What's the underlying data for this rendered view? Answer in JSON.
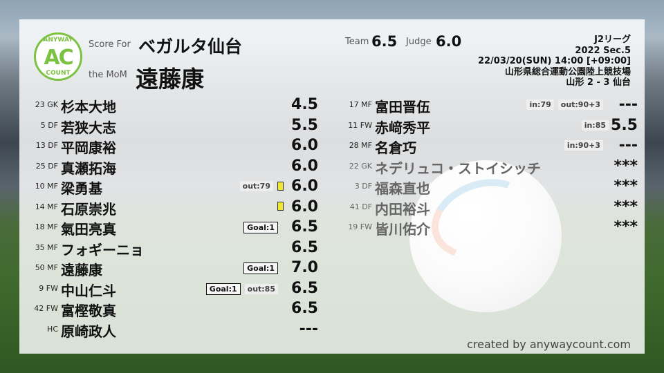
{
  "header": {
    "logo_top": "ANYWAY",
    "logo_mid": "AC",
    "logo_bottom": "COUNT",
    "score_for_label": "Score For",
    "team": "ベガルタ仙台",
    "mom_label": "the MoM",
    "mom": "遠藤康",
    "team_label": "Team",
    "team_score": "6.5",
    "judge_label": "Judge",
    "judge_score": "6.0"
  },
  "match": {
    "league": "J2リーグ",
    "section": "2022 Sec.5",
    "datetime": "22/03/20(SUN) 14:00 [+09:00]",
    "venue": "山形県総合運動公園陸上競技場",
    "result": "山形 2 - 3 仙台"
  },
  "starters": [
    {
      "num": "23 GK",
      "name": "杉本大地",
      "score": "4.5",
      "tags": []
    },
    {
      "num": "5 DF",
      "name": "若狭大志",
      "score": "5.5",
      "tags": []
    },
    {
      "num": "13 DF",
      "name": "平岡康裕",
      "score": "6.0",
      "tags": []
    },
    {
      "num": "25 DF",
      "name": "真瀬拓海",
      "score": "6.0",
      "tags": []
    },
    {
      "num": "10 MF",
      "name": "梁勇基",
      "score": "6.0",
      "tags": [
        {
          "text": "out:79",
          "type": "sub"
        },
        {
          "type": "yellow-card"
        }
      ]
    },
    {
      "num": "14 MF",
      "name": "石原崇兆",
      "score": "6.0",
      "tags": [
        {
          "type": "yellow-card"
        }
      ]
    },
    {
      "num": "18 MF",
      "name": "氣田亮真",
      "score": "6.5",
      "tags": [
        {
          "text": "Goal:1",
          "type": "goal"
        }
      ]
    },
    {
      "num": "35 MF",
      "name": "フォギーニョ",
      "score": "6.5",
      "tags": []
    },
    {
      "num": "50 MF",
      "name": "遠藤康",
      "score": "7.0",
      "tags": [
        {
          "text": "Goal:1",
          "type": "goal"
        }
      ]
    },
    {
      "num": "9 FW",
      "name": "中山仁斗",
      "score": "6.5",
      "tags": [
        {
          "text": "Goal:1",
          "type": "goal"
        },
        {
          "text": "out:85",
          "type": "sub"
        }
      ]
    },
    {
      "num": "42 FW",
      "name": "富樫敬真",
      "score": "6.5",
      "tags": []
    },
    {
      "num": "HC",
      "name": "原崎政人",
      "score": "---",
      "tags": []
    }
  ],
  "subs": [
    {
      "num": "17 MF",
      "name": "富田晋伍",
      "score": "---",
      "tags": [
        {
          "text": "in:79",
          "type": "sub"
        },
        {
          "text": "out:90+3",
          "type": "sub"
        }
      ],
      "used": true
    },
    {
      "num": "11 FW",
      "name": "赤﨑秀平",
      "score": "5.5",
      "tags": [
        {
          "text": "in:85",
          "type": "sub"
        }
      ],
      "used": true
    },
    {
      "num": "28 MF",
      "name": "名倉巧",
      "score": "---",
      "tags": [
        {
          "text": "in:90+3",
          "type": "sub"
        }
      ],
      "used": true
    },
    {
      "num": "22 GK",
      "name": "ネデリュコ・ストイシッチ",
      "score": "***",
      "tags": [],
      "used": false
    },
    {
      "num": "3 DF",
      "name": "福森直也",
      "score": "***",
      "tags": [],
      "used": false
    },
    {
      "num": "41 DF",
      "name": "内田裕斗",
      "score": "***",
      "tags": [],
      "used": false
    },
    {
      "num": "19 FW",
      "name": "皆川佑介",
      "score": "***",
      "tags": [],
      "used": false
    }
  ],
  "footer": {
    "credit": "created by anywaycount.com"
  },
  "colors": {
    "logo_green": "#7cc242",
    "yellow_card": "#f0e830"
  }
}
